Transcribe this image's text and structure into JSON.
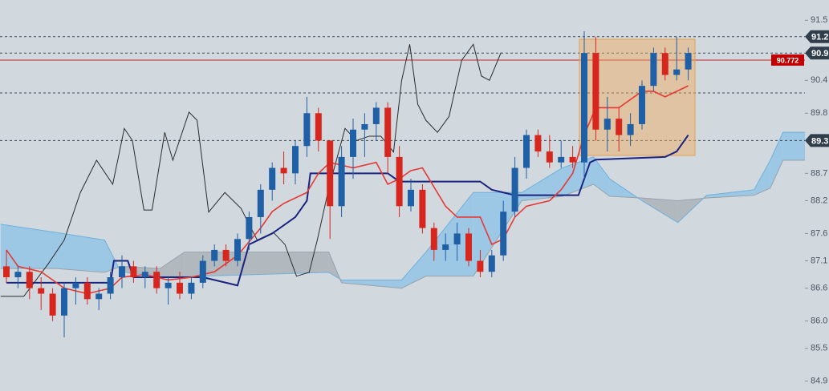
{
  "chart_data": {
    "type": "candlestick",
    "ylim": [
      84.72,
      91.87
    ],
    "yticks": [
      84.9,
      85.5,
      {
        "value": 86,
        "label": "86.0"
      },
      86.6,
      87.1,
      87.6,
      88.2,
      88.7,
      89.8,
      90.4,
      91.5
    ],
    "up_color": "#1f5fa6",
    "down_color": "#d7261e",
    "candles": {
      "open": [
        87.0,
        86.8,
        86.9,
        86.6,
        86.5,
        86.1,
        86.6,
        86.7,
        86.4,
        86.5,
        86.8,
        87.0,
        86.8,
        86.9,
        86.6,
        86.7,
        86.5,
        86.7,
        87.1,
        87.3,
        87.1,
        87.5,
        87.9,
        88.4,
        88.8,
        88.7,
        89.2,
        89.8,
        89.3,
        88.1,
        89.0,
        89.5,
        89.6,
        89.9,
        89.0,
        88.1,
        88.4,
        87.7,
        87.3,
        87.4,
        87.6,
        87.1,
        86.9,
        87.2,
        88.0,
        88.8,
        89.4,
        89.1,
        88.9,
        89.0,
        88.9,
        90.9,
        89.5,
        89.7,
        89.4,
        89.6,
        90.3,
        90.9,
        90.5,
        90.6
      ],
      "high": [
        87.3,
        87.0,
        87.0,
        86.8,
        86.6,
        86.7,
        86.8,
        86.8,
        86.6,
        86.9,
        87.2,
        87.1,
        87.0,
        87.0,
        86.8,
        86.9,
        86.8,
        87.2,
        87.4,
        87.4,
        87.6,
        88.0,
        88.5,
        88.9,
        89.1,
        89.3,
        90.1,
        89.9,
        89.3,
        89.2,
        89.7,
        89.8,
        90.0,
        90.0,
        89.2,
        88.6,
        88.5,
        87.8,
        87.6,
        87.8,
        87.7,
        87.3,
        87.3,
        88.2,
        89.0,
        89.5,
        89.5,
        89.4,
        89.3,
        89.2,
        91.3,
        91.2,
        90.1,
        89.9,
        89.8,
        90.4,
        91.0,
        91.0,
        91.2,
        91.0
      ],
      "low": [
        86.7,
        86.6,
        86.4,
        86.2,
        86.0,
        85.7,
        86.3,
        86.3,
        86.2,
        86.4,
        86.6,
        86.7,
        86.6,
        86.5,
        86.3,
        86.4,
        86.4,
        86.6,
        87.0,
        87.0,
        87.0,
        87.3,
        87.6,
        88.2,
        88.5,
        88.5,
        89.0,
        89.1,
        87.5,
        87.9,
        88.6,
        89.0,
        89.3,
        88.7,
        87.9,
        88.0,
        87.6,
        87.1,
        87.1,
        87.1,
        87.0,
        86.8,
        86.8,
        87.1,
        87.9,
        88.6,
        89.0,
        88.8,
        88.8,
        88.8,
        88.6,
        89.3,
        89.1,
        89.1,
        89.2,
        89.5,
        90.2,
        90.4,
        90.4,
        90.4
      ],
      "close": [
        86.8,
        86.9,
        86.6,
        86.5,
        86.1,
        86.6,
        86.7,
        86.4,
        86.5,
        86.8,
        87.0,
        86.8,
        86.9,
        86.6,
        86.7,
        86.5,
        86.7,
        87.1,
        87.3,
        87.1,
        87.5,
        87.9,
        88.4,
        88.8,
        88.7,
        89.2,
        89.8,
        89.3,
        88.1,
        89.0,
        89.5,
        89.6,
        89.9,
        89.0,
        88.1,
        88.4,
        87.7,
        87.3,
        87.4,
        87.6,
        87.1,
        86.9,
        87.2,
        88.0,
        88.8,
        89.4,
        89.1,
        88.9,
        89.0,
        88.9,
        90.9,
        89.5,
        89.7,
        89.4,
        89.6,
        90.3,
        90.9,
        90.5,
        90.6,
        90.9
      ]
    },
    "cloud": {
      "x": [
        -0.5,
        4.3,
        8.5,
        9.9,
        13.3,
        15.4,
        27.9,
        29,
        34.2,
        36.3,
        40.4,
        44.6,
        48.1,
        50.8,
        52.2,
        55,
        58.1,
        60.6,
        64.7,
        66.1,
        67.2,
        69.1
      ],
      "span_a": [
        87.77,
        87.62,
        87.48,
        86.9,
        86.81,
        86.81,
        86.89,
        86.75,
        86.75,
        87.26,
        88.35,
        88.35,
        88.8,
        89.0,
        88.6,
        88.2,
        87.8,
        88.3,
        88.4,
        88.94,
        89.45,
        89.45
      ],
      "span_b": [
        86.96,
        86.96,
        86.89,
        87.0,
        86.96,
        87.26,
        87.26,
        86.7,
        86.6,
        86.82,
        86.82,
        88.2,
        88.28,
        88.5,
        88.28,
        88.25,
        88.2,
        88.25,
        88.3,
        88.43,
        88.94,
        88.94
      ],
      "bull_color": "#8fc3e6",
      "bear_color": "#a9b0b7"
    },
    "tenkan": {
      "color": "#e53935",
      "x": [
        0,
        1,
        3,
        5,
        7,
        9,
        10,
        12,
        14,
        16,
        18,
        20,
        22,
        23,
        24,
        26,
        27,
        28,
        30,
        32,
        33,
        34,
        35,
        36,
        38,
        39,
        41,
        42,
        43,
        44,
        45,
        47,
        48,
        49,
        50,
        51,
        53,
        55,
        56,
        57,
        59
      ],
      "values": [
        87.3,
        87.0,
        86.9,
        86.6,
        86.5,
        86.6,
        86.8,
        86.85,
        86.75,
        86.8,
        86.9,
        87.2,
        87.7,
        88.0,
        88.15,
        88.35,
        88.7,
        88.9,
        88.8,
        88.9,
        88.5,
        88.6,
        88.75,
        88.8,
        88.1,
        87.9,
        87.9,
        87.4,
        87.5,
        87.9,
        88.1,
        88.2,
        88.4,
        88.7,
        89.4,
        89.9,
        89.9,
        90.2,
        90.2,
        90.1,
        90.3
      ]
    },
    "kijun": {
      "color": "#1a237e",
      "x": [
        0,
        9,
        9.3,
        10.5,
        11,
        17,
        20,
        21,
        23,
        25,
        26,
        26.3,
        33,
        34,
        41,
        42,
        44,
        49.5,
        50.5,
        51,
        57,
        58,
        59
      ],
      "values": [
        86.7,
        86.7,
        87.1,
        87.1,
        86.8,
        86.8,
        86.65,
        87.4,
        87.6,
        87.9,
        88.2,
        88.7,
        88.7,
        88.55,
        88.55,
        88.4,
        88.3,
        88.3,
        88.9,
        88.95,
        89.0,
        89.1,
        89.4
      ]
    },
    "chikou": {
      "color": "#2b2b2b",
      "x": [
        -0.5,
        1.5,
        3.6,
        5,
        6.4,
        7.8,
        9.2,
        10.2,
        10.9,
        11.9,
        12.6,
        13.7,
        14.4,
        15.8,
        16.5,
        17.5,
        18.9,
        20.3,
        21.7,
        23.1,
        24.1,
        25.1,
        26.2,
        26.9,
        27.9,
        29.3,
        30.3,
        31.4,
        32.4,
        33.5,
        34.2,
        34.9,
        35.6,
        36.3,
        37.3,
        38.3,
        39.4,
        40.4,
        41.1,
        41.8,
        42.8
      ],
      "values": [
        86.45,
        86.45,
        87.04,
        87.48,
        88.35,
        88.94,
        88.5,
        89.52,
        89.3,
        88.03,
        88.03,
        89.45,
        88.94,
        89.82,
        89.67,
        87.99,
        88.35,
        88.06,
        87.48,
        87.62,
        87.4,
        86.82,
        86.89,
        87.48,
        88.43,
        89.52,
        89.3,
        89.38,
        89.38,
        89.09,
        90.4,
        91.06,
        89.96,
        89.67,
        89.45,
        89.74,
        90.77,
        91.06,
        90.48,
        90.4,
        90.91
      ]
    },
    "marked_levels": [
      91.2,
      90.9,
      89.3
    ],
    "dashed_levels": [
      90.17
    ],
    "current_price": 90.772
  }
}
